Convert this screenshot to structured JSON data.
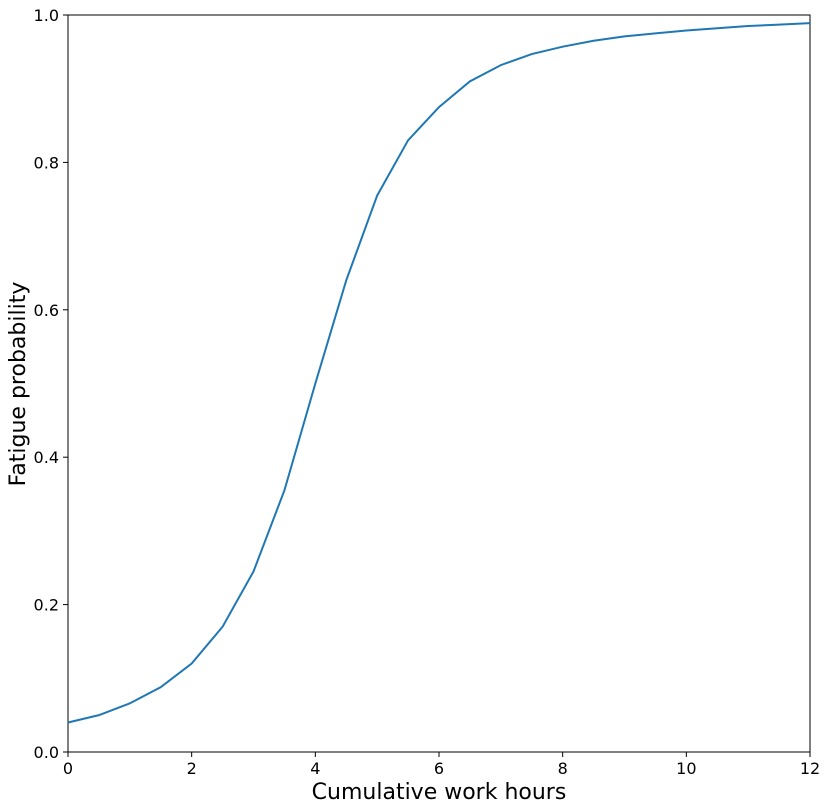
{
  "chart_data": {
    "type": "line",
    "x_label": "Cumulative work hours",
    "y_label": "Fatigue probability",
    "x": [
      0,
      0.5,
      1,
      1.5,
      2,
      2.5,
      3,
      3.5,
      4,
      4.5,
      5,
      5.5,
      6,
      6.5,
      7,
      7.5,
      8,
      8.5,
      9,
      9.5,
      10,
      10.5,
      11,
      11.5,
      12
    ],
    "series": [
      {
        "color": "#1f77b4",
        "values": [
          0.04,
          0.05,
          0.066,
          0.088,
          0.12,
          0.17,
          0.245,
          0.355,
          0.5,
          0.64,
          0.755,
          0.83,
          0.875,
          0.91,
          0.932,
          0.947,
          0.957,
          0.965,
          0.971,
          0.975,
          0.979,
          0.982,
          0.985,
          0.987,
          0.989
        ]
      }
    ],
    "xlim": [
      0,
      12
    ],
    "ylim": [
      0,
      1
    ],
    "xticks": [
      0,
      2,
      4,
      6,
      8,
      10,
      12
    ],
    "yticks": [
      {
        "value": 0,
        "label": "0.0"
      },
      0.2,
      0.4,
      0.6,
      0.8,
      {
        "value": 1,
        "label": "1.0"
      }
    ],
    "grid": false
  }
}
